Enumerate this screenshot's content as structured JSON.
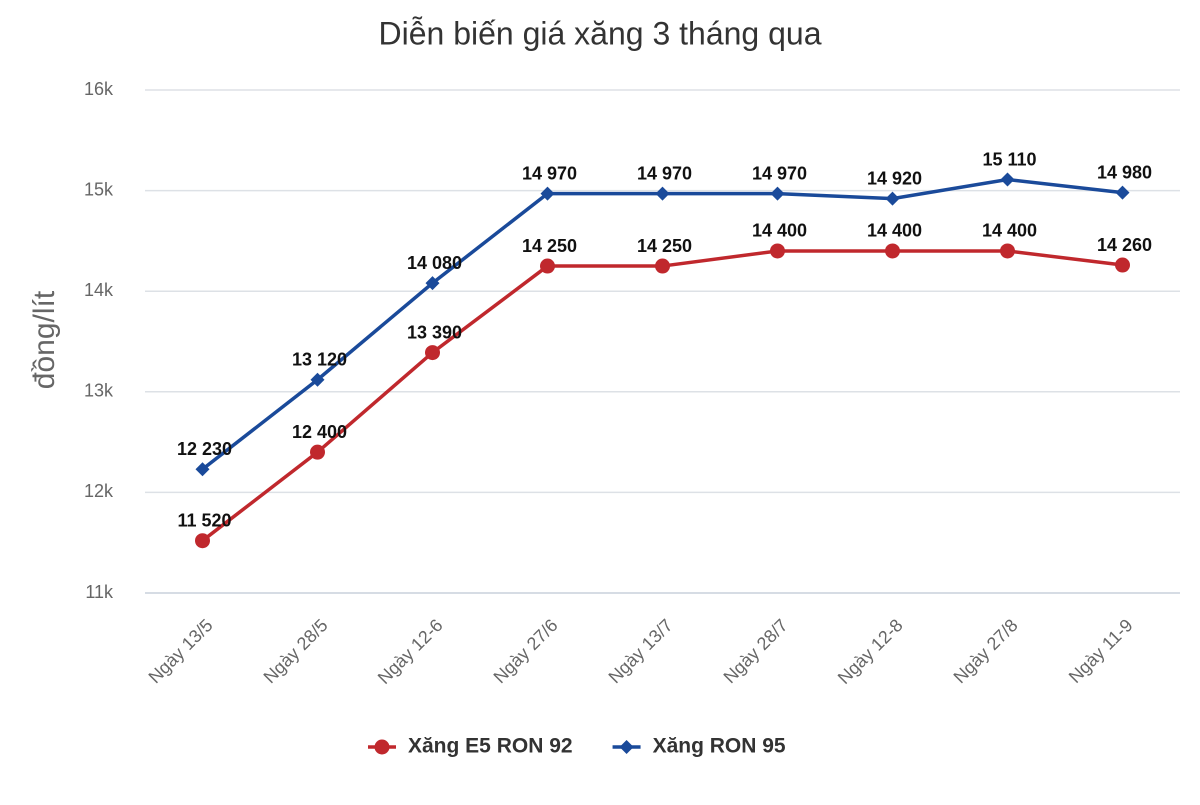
{
  "chart_data": {
    "type": "line",
    "title": "Diễn biến giá xăng 3 tháng qua",
    "y_label": "đồng/lít",
    "categories": [
      "Ngày 13/5",
      "Ngày 28/5",
      "Ngày 12-6",
      "Ngày 27/6",
      "Ngày 13/7",
      "Ngày 28/7",
      "Ngày 12-8",
      "Ngày 27/8",
      "Ngày 11-9"
    ],
    "series": [
      {
        "name": "Xăng E5 RON 92",
        "color": "#c0282d",
        "marker": "circle",
        "values": [
          11520,
          12400,
          13390,
          14250,
          14250,
          14400,
          14400,
          14400,
          14260
        ],
        "value_labels": [
          "11 520",
          "12 400",
          "13 390",
          "14 250",
          "14 250",
          "14 400",
          "14 400",
          "14 400",
          "14 260"
        ]
      },
      {
        "name": "Xăng RON 95",
        "color": "#1a4a9a",
        "marker": "diamond",
        "values": [
          12230,
          13120,
          14080,
          14970,
          14970,
          14970,
          14920,
          15110,
          14980
        ],
        "value_labels": [
          "12 230",
          "13 120",
          "14 080",
          "14 970",
          "14 970",
          "14 970",
          "14 920",
          "15 110",
          "14 980"
        ]
      }
    ],
    "ylim": [
      11000,
      16000
    ],
    "yticks": [
      {
        "value": 11000,
        "label": "11k"
      },
      {
        "value": 12000,
        "label": "12k"
      },
      {
        "value": 13000,
        "label": "13k"
      },
      {
        "value": 14000,
        "label": "14k"
      },
      {
        "value": 15000,
        "label": "15k"
      },
      {
        "value": 16000,
        "label": "16k"
      }
    ],
    "grid": true,
    "legend": "bottom"
  }
}
